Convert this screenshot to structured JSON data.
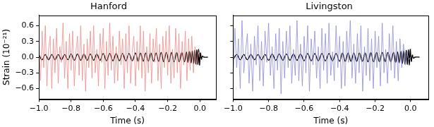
{
  "chart_data": [
    {
      "type": "line",
      "title": "Hanford",
      "x_label": "Time (s)",
      "y_label": "Strain (10⁻²¹)",
      "xlim": [
        -1.0,
        0.1
      ],
      "xticks": [
        {
          "value": -1.0,
          "label": "−1.0"
        },
        {
          "value": -0.8,
          "label": "−0.8"
        },
        {
          "value": -0.6,
          "label": "−0.6"
        },
        {
          "value": -0.4,
          "label": "−0.4"
        },
        {
          "value": -0.2,
          "label": "−0.2"
        },
        {
          "value": 0.0,
          "label": "0.0"
        }
      ],
      "ylim": [
        -0.8,
        0.8
      ],
      "yticks": [
        {
          "value": -0.6,
          "label": "−0.6"
        },
        {
          "value": -0.3,
          "label": "−0.3"
        },
        {
          "value": 0.0,
          "label": "0.0"
        },
        {
          "value": 0.3,
          "label": "0.3"
        },
        {
          "value": 0.6,
          "label": "0.6"
        }
      ],
      "grid": false,
      "series": [
        {
          "color": "#ee8c8c",
          "x": [
            -1.0,
            -0.99,
            -0.98,
            -0.97,
            -0.96,
            -0.95,
            -0.94,
            -0.93,
            -0.92,
            -0.91,
            -0.9,
            -0.89,
            -0.88,
            -0.87,
            -0.86,
            -0.85,
            -0.84,
            -0.83,
            -0.82,
            -0.81,
            -0.8,
            -0.79,
            -0.78,
            -0.77,
            -0.76,
            -0.75,
            -0.74,
            -0.73,
            -0.72,
            -0.71,
            -0.7,
            -0.69,
            -0.68,
            -0.67,
            -0.66,
            -0.65,
            -0.64,
            -0.63,
            -0.62,
            -0.61,
            -0.6,
            -0.59,
            -0.58,
            -0.57,
            -0.56,
            -0.55,
            -0.54,
            -0.53,
            -0.52,
            -0.51,
            -0.5,
            -0.49,
            -0.48,
            -0.47,
            -0.46,
            -0.45,
            -0.44,
            -0.43,
            -0.42,
            -0.41,
            -0.4,
            -0.39,
            -0.38,
            -0.37,
            -0.36,
            -0.35,
            -0.34,
            -0.33,
            -0.32,
            -0.31,
            -0.3,
            -0.29,
            -0.28,
            -0.27,
            -0.26,
            -0.25,
            -0.24,
            -0.23,
            -0.22,
            -0.21,
            -0.2,
            -0.19,
            -0.18,
            -0.17,
            -0.16,
            -0.15,
            -0.14,
            -0.13,
            -0.12,
            -0.11,
            -0.1,
            -0.09,
            -0.08,
            -0.07,
            -0.06,
            -0.05,
            -0.04,
            -0.03,
            -0.02,
            -0.01,
            0.0
          ],
          "values": [
            0.3,
            -0.45,
            0.5,
            -0.2,
            0.6,
            -0.55,
            0.15,
            0.4,
            -0.6,
            0.35,
            -0.3,
            0.55,
            -0.5,
            0.2,
            -0.1,
            0.65,
            -0.4,
            0.3,
            -0.6,
            0.45,
            -0.25,
            0.5,
            -0.55,
            0.1,
            0.4,
            -0.35,
            0.6,
            -0.45,
            0.25,
            -0.65,
            0.35,
            -0.2,
            0.5,
            -0.4,
            0.6,
            -0.3,
            0.15,
            -0.55,
            0.45,
            -0.1,
            0.55,
            -0.6,
            0.3,
            -0.35,
            0.65,
            -0.25,
            0.4,
            -0.5,
            0.2,
            -0.45,
            0.5,
            -0.15,
            0.35,
            -0.6,
            0.45,
            -0.3,
            0.6,
            -0.5,
            0.1,
            0.4,
            -0.55,
            0.3,
            -0.25,
            0.6,
            -0.4,
            0.5,
            -0.65,
            0.2,
            -0.3,
            0.45,
            -0.5,
            0.35,
            -0.1,
            0.55,
            -0.45,
            0.25,
            -0.6,
            0.4,
            -0.2,
            0.5,
            -0.35,
            0.6,
            -0.5,
            0.15,
            -0.4,
            0.55,
            -0.3,
            0.45,
            -0.6,
            0.3,
            -0.15,
            0.5,
            -0.45,
            0.35,
            -0.25,
            0.4,
            -0.3,
            0.2,
            -0.15,
            0.1,
            0.0
          ]
        },
        {
          "color": "#000000",
          "x": [
            -1.0,
            -0.98,
            -0.96,
            -0.94,
            -0.92,
            -0.9,
            -0.88,
            -0.86,
            -0.84,
            -0.82,
            -0.8,
            -0.78,
            -0.76,
            -0.74,
            -0.72,
            -0.7,
            -0.68,
            -0.66,
            -0.64,
            -0.62,
            -0.6,
            -0.58,
            -0.56,
            -0.54,
            -0.52,
            -0.5,
            -0.48,
            -0.46,
            -0.44,
            -0.42,
            -0.4,
            -0.384,
            -0.368,
            -0.352,
            -0.336,
            -0.32,
            -0.304,
            -0.288,
            -0.272,
            -0.256,
            -0.24,
            -0.224,
            -0.208,
            -0.192,
            -0.176,
            -0.16,
            -0.144,
            -0.128,
            -0.112,
            -0.096,
            -0.084,
            -0.074,
            -0.064,
            -0.054,
            -0.046,
            -0.038,
            -0.031,
            -0.024,
            -0.018,
            -0.012,
            -0.007,
            -0.002,
            0.004,
            0.01,
            0.016,
            0.025,
            0.05
          ],
          "values": [
            0.05,
            -0.05,
            0.05,
            -0.05,
            0.05,
            -0.05,
            0.05,
            -0.05,
            0.05,
            -0.05,
            0.06,
            -0.06,
            0.06,
            -0.06,
            0.06,
            -0.06,
            0.06,
            -0.06,
            0.06,
            -0.06,
            0.07,
            -0.07,
            0.07,
            -0.07,
            0.07,
            -0.07,
            0.07,
            -0.07,
            0.07,
            -0.07,
            0.08,
            -0.08,
            0.08,
            -0.08,
            0.08,
            -0.08,
            0.08,
            -0.08,
            0.08,
            -0.08,
            0.09,
            -0.09,
            0.09,
            -0.09,
            0.09,
            -0.09,
            0.09,
            -0.09,
            0.09,
            -0.09,
            0.1,
            -0.1,
            0.11,
            -0.11,
            0.12,
            -0.12,
            0.13,
            -0.13,
            0.14,
            -0.14,
            0.15,
            -0.15,
            0.08,
            -0.04,
            0.02,
            0,
            0
          ]
        }
      ]
    },
    {
      "type": "line",
      "title": "Livingston",
      "x_label": "Time (s)",
      "xlim": [
        -1.0,
        0.1
      ],
      "xticks": [
        {
          "value": -1.0,
          "label": "−1.0"
        },
        {
          "value": -0.8,
          "label": "−0.8"
        },
        {
          "value": -0.6,
          "label": "−0.6"
        },
        {
          "value": -0.4,
          "label": "−0.4"
        },
        {
          "value": -0.2,
          "label": "−0.2"
        },
        {
          "value": 0.0,
          "label": "0.0"
        }
      ],
      "ylim": [
        -0.8,
        0.8
      ],
      "yticks": [
        {
          "value": -0.6,
          "label": "−0.6"
        },
        {
          "value": -0.3,
          "label": "−0.3"
        },
        {
          "value": 0.0,
          "label": "0.0"
        },
        {
          "value": 0.3,
          "label": "0.3"
        },
        {
          "value": 0.6,
          "label": "0.6"
        }
      ],
      "grid": false,
      "tick_labels": "x",
      "series": [
        {
          "color": "#8e8ed6",
          "x": [
            -1.0,
            -0.99,
            -0.98,
            -0.97,
            -0.96,
            -0.95,
            -0.94,
            -0.93,
            -0.92,
            -0.91,
            -0.9,
            -0.89,
            -0.88,
            -0.87,
            -0.86,
            -0.85,
            -0.84,
            -0.83,
            -0.82,
            -0.81,
            -0.8,
            -0.79,
            -0.78,
            -0.77,
            -0.76,
            -0.75,
            -0.74,
            -0.73,
            -0.72,
            -0.71,
            -0.7,
            -0.69,
            -0.68,
            -0.67,
            -0.66,
            -0.65,
            -0.64,
            -0.63,
            -0.62,
            -0.61,
            -0.6,
            -0.59,
            -0.58,
            -0.57,
            -0.56,
            -0.55,
            -0.54,
            -0.53,
            -0.52,
            -0.51,
            -0.5,
            -0.49,
            -0.48,
            -0.47,
            -0.46,
            -0.45,
            -0.44,
            -0.43,
            -0.42,
            -0.41,
            -0.4,
            -0.39,
            -0.38,
            -0.37,
            -0.36,
            -0.35,
            -0.34,
            -0.33,
            -0.32,
            -0.31,
            -0.3,
            -0.29,
            -0.28,
            -0.27,
            -0.26,
            -0.25,
            -0.24,
            -0.23,
            -0.22,
            -0.21,
            -0.2,
            -0.19,
            -0.18,
            -0.17,
            -0.16,
            -0.15,
            -0.14,
            -0.13,
            -0.12,
            -0.11,
            -0.1,
            -0.09,
            -0.08,
            -0.07,
            -0.06,
            -0.05,
            -0.04,
            -0.03,
            -0.02,
            -0.01,
            0.0
          ],
          "values": [
            -0.4,
            0.55,
            -0.2,
            0.35,
            -0.6,
            0.7,
            -0.3,
            0.1,
            0.45,
            -0.5,
            0.25,
            -0.65,
            0.4,
            -0.15,
            0.6,
            -0.45,
            0.3,
            -0.55,
            0.5,
            -0.1,
            0.65,
            -0.35,
            0.2,
            -0.6,
            0.45,
            -0.25,
            0.55,
            -0.7,
            0.3,
            -0.4,
            0.5,
            -0.2,
            0.6,
            -0.5,
            0.15,
            -0.35,
            0.7,
            -0.45,
            0.25,
            -0.55,
            0.4,
            -0.3,
            0.6,
            -0.65,
            0.35,
            -0.15,
            0.5,
            -0.4,
            0.2,
            -0.6,
            0.55,
            -0.25,
            0.45,
            -0.5,
            0.65,
            -0.35,
            0.1,
            -0.45,
            0.6,
            -0.2,
            0.4,
            -0.6,
            0.3,
            -0.55,
            0.5,
            -0.1,
            0.7,
            -0.4,
            0.25,
            -0.5,
            0.45,
            -0.3,
            0.6,
            -0.65,
            0.2,
            -0.35,
            0.55,
            -0.45,
            0.35,
            -0.6,
            0.5,
            -0.2,
            0.4,
            -0.55,
            0.65,
            -0.3,
            0.15,
            -0.5,
            0.45,
            -0.25,
            0.6,
            -0.4,
            0.3,
            -0.45,
            0.35,
            -0.2,
            0.25,
            -0.15,
            0.1,
            -0.05,
            0.0
          ]
        },
        {
          "color": "#000000",
          "x": [
            -1.0,
            -0.98,
            -0.96,
            -0.94,
            -0.92,
            -0.9,
            -0.88,
            -0.86,
            -0.84,
            -0.82,
            -0.8,
            -0.78,
            -0.76,
            -0.74,
            -0.72,
            -0.7,
            -0.68,
            -0.66,
            -0.64,
            -0.62,
            -0.6,
            -0.58,
            -0.56,
            -0.54,
            -0.52,
            -0.5,
            -0.48,
            -0.46,
            -0.44,
            -0.42,
            -0.4,
            -0.384,
            -0.368,
            -0.352,
            -0.336,
            -0.32,
            -0.304,
            -0.288,
            -0.272,
            -0.256,
            -0.24,
            -0.224,
            -0.208,
            -0.192,
            -0.176,
            -0.16,
            -0.144,
            -0.128,
            -0.112,
            -0.096,
            -0.084,
            -0.074,
            -0.064,
            -0.054,
            -0.046,
            -0.038,
            -0.031,
            -0.024,
            -0.018,
            -0.012,
            -0.007,
            -0.002,
            0.004,
            0.01,
            0.016,
            0.025,
            0.05
          ],
          "values": [
            -0.05,
            0.05,
            -0.05,
            0.05,
            -0.05,
            0.05,
            -0.05,
            0.05,
            -0.05,
            0.05,
            -0.06,
            0.06,
            -0.06,
            0.06,
            -0.06,
            0.06,
            -0.06,
            0.06,
            -0.06,
            0.06,
            -0.07,
            0.07,
            -0.07,
            0.07,
            -0.07,
            0.07,
            -0.07,
            0.07,
            -0.07,
            0.07,
            -0.08,
            0.08,
            -0.08,
            0.08,
            -0.08,
            0.08,
            -0.08,
            0.08,
            -0.08,
            0.08,
            -0.09,
            0.09,
            -0.09,
            0.09,
            -0.09,
            0.09,
            -0.09,
            0.09,
            -0.09,
            0.09,
            -0.1,
            0.1,
            -0.11,
            0.11,
            -0.12,
            0.12,
            -0.13,
            0.13,
            -0.14,
            0.14,
            -0.15,
            0.15,
            -0.08,
            0.04,
            -0.02,
            0,
            0
          ]
        }
      ]
    }
  ]
}
